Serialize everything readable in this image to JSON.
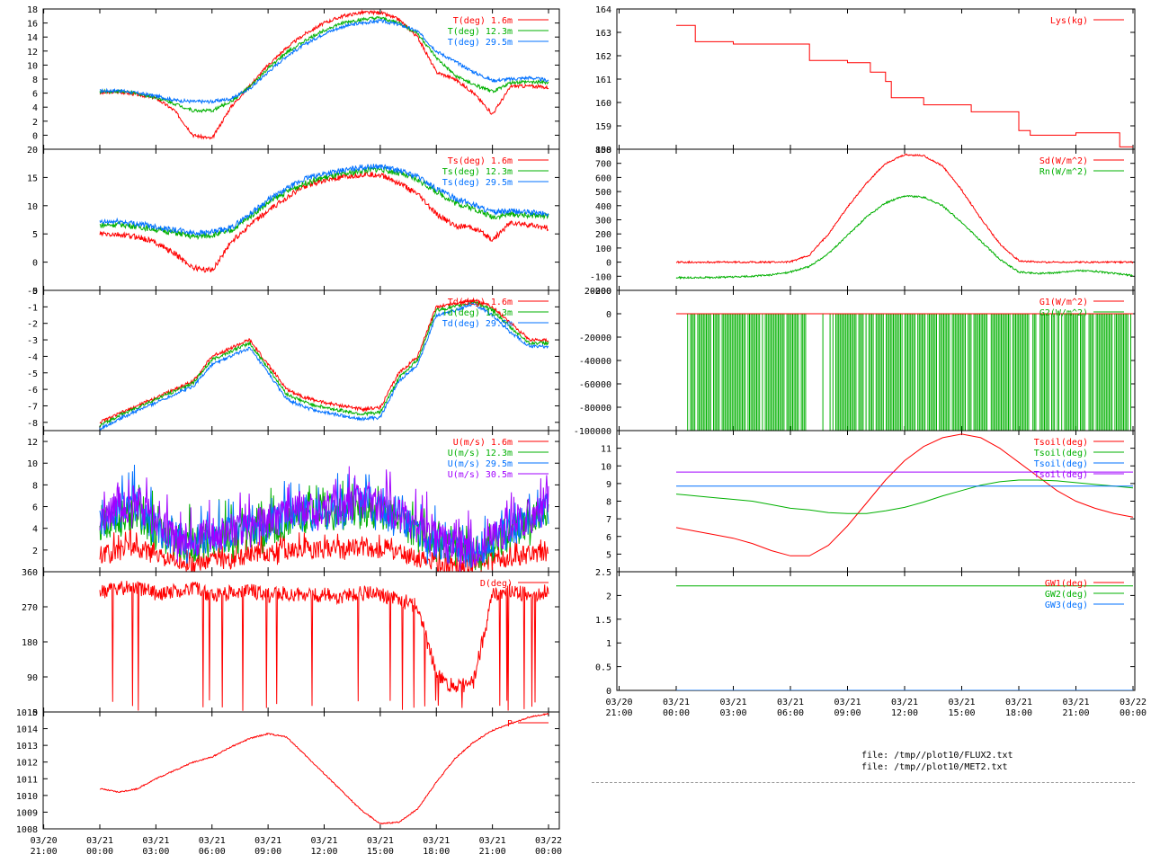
{
  "colors": {
    "red": "#ff0000",
    "green": "#00b000",
    "blue": "#0070ff",
    "magenta": "#a000ff"
  },
  "files": [
    "file: /tmp//plot10/FLUX2.txt",
    "file: /tmp//plot10/MET2.txt"
  ],
  "time_ticks": {
    "left": [
      [
        "03/20",
        "21:00"
      ],
      [
        "03/21",
        "00:00"
      ],
      [
        "03/21",
        "03:00"
      ],
      [
        "03/21",
        "06:00"
      ],
      [
        "03/21",
        "09:00"
      ],
      [
        "03/21",
        "12:00"
      ],
      [
        "03/21",
        "15:00"
      ],
      [
        "03/21",
        "18:00"
      ],
      [
        "03/21",
        "21:00"
      ],
      [
        "03/22",
        "00:00"
      ]
    ],
    "right": [
      [
        "03/20",
        "21:00"
      ],
      [
        "03/21",
        "00:00"
      ],
      [
        "03/21",
        "03:00"
      ],
      [
        "03/21",
        "06:00"
      ],
      [
        "03/21",
        "09:00"
      ],
      [
        "03/21",
        "12:00"
      ],
      [
        "03/21",
        "15:00"
      ],
      [
        "03/21",
        "18:00"
      ],
      [
        "03/21",
        "21:00"
      ],
      [
        "03/22",
        "00:00"
      ]
    ]
  },
  "chart_data": [
    {
      "id": "temp",
      "type": "line",
      "ylim": [
        -2,
        18
      ],
      "yticks": [
        "18",
        "16",
        "14",
        "12",
        "10",
        "8",
        "6",
        "4",
        "2",
        "0"
      ],
      "x_hours": [
        0,
        1,
        2,
        3,
        4,
        5,
        6,
        7,
        8,
        9,
        10,
        11,
        12,
        13,
        14,
        15,
        16,
        17,
        18,
        19,
        20,
        21,
        22,
        23,
        24
      ],
      "series": [
        {
          "name": "T(deg)  1.6m",
          "color": "red",
          "values": [
            6,
            6.2,
            5.8,
            5.3,
            3.5,
            0,
            -0.5,
            4,
            7,
            10,
            12.5,
            14.5,
            16,
            17,
            17.5,
            17.5,
            16.5,
            14,
            9,
            8,
            6,
            3,
            7,
            7,
            6.8
          ]
        },
        {
          "name": "T(deg) 12.3m",
          "color": "green",
          "values": [
            6.2,
            6.3,
            5.9,
            5.4,
            4.5,
            3.5,
            3.5,
            4.8,
            6.8,
            9.5,
            11.8,
            13.5,
            15,
            16,
            16.5,
            16.7,
            16,
            14.5,
            11,
            8.5,
            7.2,
            6.2,
            7.5,
            7.6,
            7.5
          ]
        },
        {
          "name": "T(deg) 29.5m",
          "color": "blue",
          "values": [
            6.3,
            6.4,
            6,
            5.6,
            5,
            4.8,
            4.8,
            5.2,
            6.6,
            9,
            11.3,
            13,
            14.5,
            15.5,
            16,
            16.3,
            15.8,
            14.8,
            12,
            10.5,
            9,
            7.8,
            8,
            8.2,
            7.8
          ]
        }
      ]
    },
    {
      "id": "tsurf",
      "type": "line",
      "ylim": [
        -5,
        20
      ],
      "yticks": [
        "20",
        "15",
        "10",
        "5",
        "0",
        "-5"
      ],
      "x_hours": [
        0,
        1,
        2,
        3,
        4,
        5,
        6,
        7,
        8,
        9,
        10,
        11,
        12,
        13,
        14,
        15,
        16,
        17,
        18,
        19,
        20,
        21,
        22,
        23,
        24
      ],
      "series": [
        {
          "name": "Ts(deg)  1.6m",
          "color": "red",
          "values": [
            5,
            4.8,
            4.5,
            3.5,
            1.5,
            -1,
            -1.5,
            3.5,
            6.5,
            9,
            11.5,
            13.5,
            14.5,
            15,
            15.5,
            15.5,
            14,
            12,
            8.5,
            6.5,
            6,
            4,
            7,
            6.5,
            6
          ]
        },
        {
          "name": "Ts(deg) 12.3m",
          "color": "green",
          "values": [
            6.5,
            6.7,
            6.3,
            5.8,
            5.2,
            4.5,
            4.8,
            5.5,
            8,
            10.5,
            12.5,
            14,
            15,
            15.5,
            16.2,
            16.5,
            15.7,
            14.6,
            12.5,
            10.5,
            9.5,
            8,
            8.5,
            8.3,
            8.2
          ]
        },
        {
          "name": "Ts(deg) 29.5m",
          "color": "blue",
          "values": [
            7,
            7.2,
            6.8,
            6.3,
            5.7,
            5.2,
            5.3,
            6,
            8.5,
            11,
            13,
            14.8,
            15.7,
            16.2,
            16.8,
            17,
            16.2,
            15.2,
            13,
            11.3,
            10.2,
            8.8,
            9,
            8.8,
            8.5
          ]
        }
      ]
    },
    {
      "id": "dew",
      "type": "line",
      "ylim": [
        -8.5,
        0
      ],
      "yticks": [
        "0",
        "-1",
        "-2",
        "-3",
        "-4",
        "-5",
        "-6",
        "-7",
        "-8"
      ],
      "x_hours": [
        0,
        1,
        2,
        3,
        4,
        5,
        6,
        7,
        8,
        9,
        10,
        11,
        12,
        13,
        14,
        15,
        16,
        17,
        18,
        19,
        20,
        21,
        22,
        23,
        24
      ],
      "series": [
        {
          "name": "Td(deg)  1.6m",
          "color": "red",
          "values": [
            -8,
            -7.5,
            -7,
            -6.5,
            -6,
            -5.5,
            -4,
            -3.5,
            -3,
            -4.5,
            -6,
            -6.5,
            -6.8,
            -7,
            -7.2,
            -7.1,
            -5,
            -4,
            -1,
            -0.8,
            -0.6,
            -1,
            -2,
            -3,
            -3
          ]
        },
        {
          "name": "Td(deg) 12.3m",
          "color": "green",
          "values": [
            -8.2,
            -7.6,
            -7.1,
            -6.6,
            -6.1,
            -5.6,
            -4.2,
            -3.7,
            -3.2,
            -4.7,
            -6.3,
            -6.8,
            -7.1,
            -7.3,
            -7.5,
            -7.4,
            -5.3,
            -4.2,
            -1.2,
            -1,
            -0.7,
            -1.2,
            -2.3,
            -3.2,
            -3.2
          ]
        },
        {
          "name": "Td(deg) 29.5m",
          "color": "blue",
          "values": [
            -8.4,
            -7.8,
            -7.3,
            -6.8,
            -6.3,
            -5.8,
            -4.5,
            -4,
            -3.5,
            -5,
            -6.6,
            -7.1,
            -7.4,
            -7.6,
            -7.8,
            -7.7,
            -5.5,
            -4.5,
            -1.5,
            -1.2,
            -0.8,
            -1.5,
            -2.6,
            -3.4,
            -3.4
          ]
        }
      ]
    },
    {
      "id": "wind",
      "type": "line",
      "ylim": [
        0,
        13
      ],
      "yticks": [
        "12",
        "10",
        "8",
        "6",
        "4",
        "2"
      ],
      "x_hours": [
        0,
        1,
        2,
        3,
        4,
        5,
        6,
        7,
        8,
        9,
        10,
        11,
        12,
        13,
        14,
        15,
        16,
        17,
        18,
        19,
        20,
        21,
        22,
        23,
        24
      ],
      "series": [
        {
          "name": "U(m/s)  1.6m",
          "color": "red",
          "values": [
            1.5,
            2,
            2.2,
            1.5,
            1,
            0.8,
            1,
            1.2,
            1.5,
            1.8,
            2,
            2.2,
            2,
            2,
            2.3,
            2.1,
            1.8,
            1.2,
            0.8,
            0.6,
            0.5,
            1,
            1.4,
            1.6,
            1.8
          ]
        },
        {
          "name": "U(m/s) 12.3m",
          "color": "green",
          "values": [
            4,
            5,
            5.5,
            3.5,
            2.8,
            2.5,
            3,
            3.2,
            3.5,
            4,
            4.5,
            5,
            5.2,
            5.5,
            5.8,
            5.5,
            4.8,
            3.5,
            2.5,
            2,
            1.5,
            2.5,
            3.5,
            4.5,
            5.5
          ]
        },
        {
          "name": "U(m/s) 29.5m",
          "color": "blue",
          "values": [
            4.5,
            5.5,
            6,
            4,
            3,
            2.8,
            3.2,
            3.5,
            3.8,
            4.3,
            4.8,
            5.3,
            5.5,
            5.8,
            6.2,
            5.8,
            5,
            3.8,
            2.8,
            2.2,
            1.8,
            2.8,
            3.8,
            4.8,
            6
          ]
        },
        {
          "name": "U(m/s) 30.5m",
          "color": "magenta",
          "values": [
            5,
            6,
            6.3,
            4.3,
            3.2,
            3,
            3.5,
            3.8,
            4.2,
            4.6,
            5.2,
            5.6,
            5.8,
            6.1,
            6.5,
            6.1,
            5.3,
            4,
            3,
            2.4,
            2,
            3,
            4,
            5,
            6.4
          ]
        }
      ]
    },
    {
      "id": "dir",
      "type": "line",
      "ylim": [
        0,
        360
      ],
      "yticks": [
        "360",
        "270",
        "180",
        "90",
        "0"
      ],
      "x_hours": [
        0,
        1,
        2,
        3,
        4,
        5,
        6,
        7,
        8,
        9,
        10,
        11,
        12,
        13,
        14,
        15,
        16,
        17,
        18,
        19,
        20,
        21,
        22,
        23,
        24
      ],
      "series": [
        {
          "name": "D(deg)",
          "color": "red",
          "values": [
            310,
            315,
            320,
            305,
            310,
            320,
            300,
            305,
            310,
            300,
            305,
            298,
            300,
            295,
            305,
            300,
            290,
            270,
            100,
            60,
            80,
            300,
            310,
            300,
            310
          ]
        }
      ]
    },
    {
      "id": "pres",
      "type": "line",
      "ylim": [
        1008,
        1015
      ],
      "yticks": [
        "1015",
        "1014",
        "1013",
        "1012",
        "1011",
        "1010",
        "1009",
        "1008"
      ],
      "x_hours": [
        0,
        1,
        2,
        3,
        4,
        5,
        6,
        7,
        8,
        9,
        10,
        11,
        12,
        13,
        14,
        15,
        16,
        17,
        18,
        19,
        20,
        21,
        22,
        23,
        24
      ],
      "series": [
        {
          "name": "P",
          "color": "red",
          "values": [
            1010.4,
            1010.2,
            1010.4,
            1011,
            1011.5,
            1012,
            1012.3,
            1012.9,
            1013.4,
            1013.7,
            1013.5,
            1012.4,
            1011.3,
            1010.2,
            1009.1,
            1008.3,
            1008.4,
            1009.2,
            1010.8,
            1012.2,
            1013.2,
            1013.9,
            1014.3,
            1014.7,
            1014.9
          ]
        }
      ]
    },
    {
      "id": "lys",
      "type": "line",
      "ylim": [
        158,
        164
      ],
      "yticks": [
        "164",
        "163",
        "162",
        "161",
        "160",
        "159",
        "158"
      ],
      "x_hours": [
        0,
        0.7,
        1,
        3,
        5,
        7,
        9,
        10.2,
        11,
        11.3,
        13,
        15.5,
        18,
        18.6,
        21,
        23.3,
        24
      ],
      "series": [
        {
          "name": "Lys(kg)",
          "color": "red",
          "values": [
            163.3,
            163.3,
            162.6,
            162.5,
            162.5,
            161.8,
            161.7,
            161.3,
            160.9,
            160.2,
            159.9,
            159.6,
            158.8,
            158.6,
            158.7,
            158.1,
            158.1
          ]
        }
      ]
    },
    {
      "id": "rad",
      "type": "line",
      "ylim": [
        -200,
        800
      ],
      "yticks": [
        "800",
        "700",
        "600",
        "500",
        "400",
        "300",
        "200",
        "100",
        "0",
        "-100",
        "-200"
      ],
      "x_hours": [
        0,
        1,
        2,
        3,
        4,
        5,
        6,
        7,
        8,
        9,
        10,
        11,
        12,
        13,
        14,
        15,
        16,
        17,
        18,
        19,
        20,
        21,
        22,
        23,
        24
      ],
      "series": [
        {
          "name": "Sd(W/m^2)",
          "color": "red",
          "values": [
            0,
            0,
            0,
            0,
            0,
            0,
            2,
            50,
            200,
            390,
            560,
            700,
            760,
            755,
            680,
            510,
            310,
            130,
            10,
            0,
            0,
            0,
            0,
            0,
            0
          ]
        },
        {
          "name": "Rn(W/m^2)",
          "color": "green",
          "values": [
            -110,
            -110,
            -108,
            -105,
            -100,
            -90,
            -70,
            -30,
            60,
            190,
            320,
            420,
            470,
            460,
            400,
            280,
            150,
            20,
            -70,
            -80,
            -75,
            -60,
            -65,
            -80,
            -95
          ]
        }
      ]
    },
    {
      "id": "soilflux",
      "type": "line",
      "ylim": [
        -100000,
        20000
      ],
      "yticks": [
        "20000",
        "0",
        "-20000",
        "-40000",
        "-60000",
        "-80000",
        "-100000"
      ],
      "x_hours": [
        0,
        24
      ],
      "series": [
        {
          "name": "G1(W/m^2)",
          "color": "red",
          "values": [
            0,
            0
          ]
        },
        {
          "name": "G2(W/m^2)",
          "color": "green",
          "values": [
            0,
            0
          ]
        }
      ]
    },
    {
      "id": "tsoil",
      "type": "line",
      "ylim": [
        4,
        12
      ],
      "yticks": [
        "11",
        "10",
        "9",
        "8",
        "7",
        "6",
        "5"
      ],
      "x_hours": [
        0,
        1,
        2,
        3,
        4,
        5,
        6,
        7,
        8,
        9,
        10,
        11,
        12,
        13,
        14,
        15,
        16,
        17,
        18,
        19,
        20,
        21,
        22,
        23,
        24
      ],
      "series": [
        {
          "name": "Tsoil(deg)",
          "color": "red",
          "values": [
            6.5,
            6.3,
            6.1,
            5.9,
            5.6,
            5.2,
            4.9,
            4.9,
            5.5,
            6.6,
            7.9,
            9.2,
            10.3,
            11.1,
            11.6,
            11.8,
            11.6,
            11,
            10.2,
            9.4,
            8.6,
            8,
            7.6,
            7.3,
            7.1
          ]
        },
        {
          "name": "Tsoil(deg)",
          "color": "green",
          "values": [
            8.4,
            8.3,
            8.2,
            8.1,
            8,
            7.8,
            7.6,
            7.5,
            7.35,
            7.3,
            7.3,
            7.45,
            7.65,
            7.95,
            8.3,
            8.6,
            8.9,
            9.1,
            9.2,
            9.2,
            9.15,
            9.05,
            8.95,
            8.85,
            8.75
          ]
        },
        {
          "name": "Tsoil(deg)",
          "color": "blue",
          "values": [
            8.85,
            8.85,
            8.85,
            8.85,
            8.85,
            8.85,
            8.85,
            8.85,
            8.85,
            8.85,
            8.85,
            8.85,
            8.85,
            8.85,
            8.85,
            8.85,
            8.85,
            8.85,
            8.85,
            8.85,
            8.85,
            8.85,
            8.85,
            8.85,
            8.85
          ]
        },
        {
          "name": "Tsoil(deg)",
          "color": "magenta",
          "values": [
            9.65,
            9.65,
            9.65,
            9.65,
            9.65,
            9.65,
            9.65,
            9.65,
            9.65,
            9.65,
            9.65,
            9.65,
            9.65,
            9.65,
            9.65,
            9.65,
            9.65,
            9.65,
            9.65,
            9.65,
            9.65,
            9.65,
            9.65,
            9.65,
            9.65
          ]
        }
      ]
    },
    {
      "id": "gw",
      "type": "line",
      "ylim": [
        0,
        2.5
      ],
      "yticks": [
        "2.5",
        "2",
        "1.5",
        "1",
        "0.5",
        "0"
      ],
      "x_hours": [
        0,
        24
      ],
      "series": [
        {
          "name": "GW1(deg)",
          "color": "red",
          "values": [
            0,
            0
          ]
        },
        {
          "name": "GW2(deg)",
          "color": "green",
          "values": [
            2.2,
            2.2
          ]
        },
        {
          "name": "GW3(deg)",
          "color": "blue",
          "values": [
            0,
            0
          ]
        }
      ]
    }
  ]
}
